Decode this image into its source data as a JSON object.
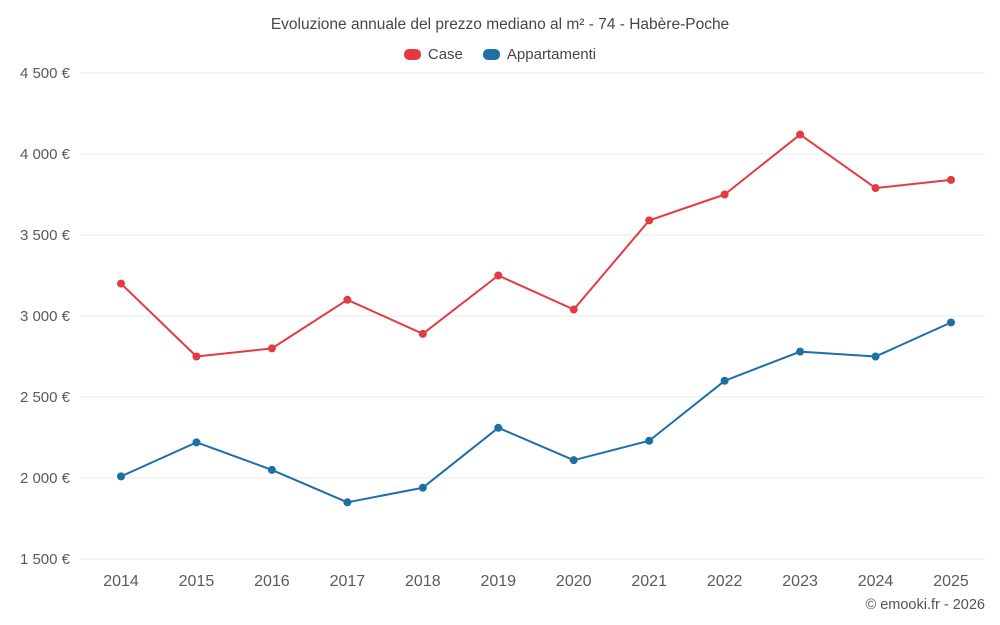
{
  "header": {
    "title": "Evoluzione annuale del prezzo mediano al m² - 74 - Habère-Poche"
  },
  "footer": {
    "copyright": "© emooki.fr - 2026"
  },
  "colors": {
    "case_red": "#e23b41",
    "appartamenti_blue": "#1d6fa5",
    "grid": "#e8e8e8",
    "tick_text": "#5a5a5a"
  },
  "chart_data": {
    "type": "line",
    "title": "Evoluzione annuale del prezzo mediano al m² - 74 - Habère-Poche",
    "categories": [
      "2014",
      "2015",
      "2016",
      "2017",
      "2018",
      "2019",
      "2020",
      "2021",
      "2022",
      "2023",
      "2024",
      "2025"
    ],
    "series": [
      {
        "name": "Case",
        "color": "#e23b41",
        "values": [
          3200,
          2750,
          2800,
          3100,
          2890,
          3250,
          3040,
          3590,
          3750,
          4120,
          3790,
          3840
        ]
      },
      {
        "name": "Appartamenti",
        "color": "#1d6fa5",
        "values": [
          2010,
          2220,
          2050,
          1850,
          1940,
          2310,
          2110,
          2230,
          2600,
          2780,
          2750,
          2960
        ]
      }
    ],
    "yticks": [
      {
        "value": 1500,
        "label": "1 500 €"
      },
      {
        "value": 2000,
        "label": "2 000 €"
      },
      {
        "value": 2500,
        "label": "2 500 €"
      },
      {
        "value": 3000,
        "label": "3 000 €"
      },
      {
        "value": 3500,
        "label": "3 500 €"
      },
      {
        "value": 4000,
        "label": "4 000 €"
      },
      {
        "value": 4500,
        "label": "4 500 €"
      }
    ],
    "ylim": [
      1500,
      4500
    ],
    "xlabel": "",
    "ylabel": "",
    "grid": "horizontal",
    "legend_position": "top"
  }
}
